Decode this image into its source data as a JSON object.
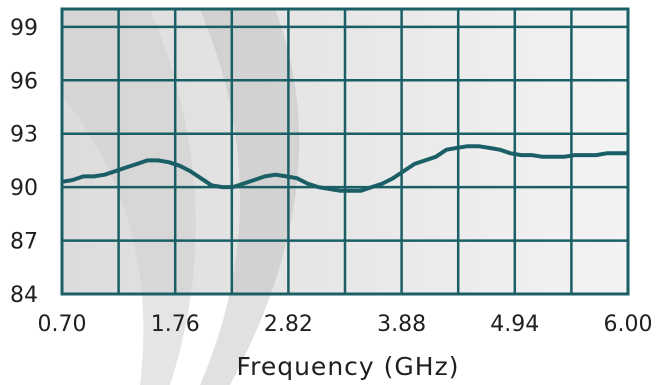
{
  "chart_data": {
    "type": "line",
    "title": "",
    "xlabel": "Frequency (GHz)",
    "ylabel": "",
    "xlim": [
      0.7,
      6.0
    ],
    "ylim": [
      84,
      100
    ],
    "x_ticks": [
      "0.70",
      "1.76",
      "2.82",
      "3.88",
      "4.94",
      "6.00"
    ],
    "y_ticks": [
      "84",
      "87",
      "90",
      "93",
      "96",
      "99"
    ],
    "grid": true,
    "legend": "none",
    "colors": {
      "line": "#1a5f66",
      "grid": "#1a5f66",
      "frame": "#1a5f66",
      "band_dark": "#c4c4c4",
      "band_light": "#ececec"
    },
    "series": [
      {
        "x": [
          0.7,
          0.8,
          0.9,
          1.0,
          1.1,
          1.2,
          1.3,
          1.4,
          1.5,
          1.6,
          1.7,
          1.8,
          1.9,
          2.0,
          2.1,
          2.2,
          2.3,
          2.4,
          2.5,
          2.6,
          2.7,
          2.8,
          2.9,
          3.0,
          3.1,
          3.2,
          3.3,
          3.4,
          3.5,
          3.6,
          3.7,
          3.8,
          3.9,
          4.0,
          4.1,
          4.2,
          4.3,
          4.4,
          4.5,
          4.6,
          4.7,
          4.8,
          4.9,
          5.0,
          5.1,
          5.2,
          5.3,
          5.4,
          5.5,
          5.6,
          5.7,
          5.8,
          5.9,
          6.0
        ],
        "values": [
          90.3,
          90.4,
          90.6,
          90.6,
          90.7,
          90.9,
          91.1,
          91.3,
          91.5,
          91.5,
          91.4,
          91.2,
          90.9,
          90.5,
          90.1,
          90.0,
          90.0,
          90.2,
          90.4,
          90.6,
          90.7,
          90.6,
          90.5,
          90.2,
          90.0,
          89.9,
          89.8,
          89.8,
          89.8,
          90.0,
          90.2,
          90.5,
          90.9,
          91.3,
          91.5,
          91.7,
          92.1,
          92.2,
          92.3,
          92.3,
          92.2,
          92.1,
          91.9,
          91.8,
          91.8,
          91.7,
          91.7,
          91.7,
          91.8,
          91.8,
          91.8,
          91.9,
          91.9,
          91.9
        ]
      }
    ]
  }
}
